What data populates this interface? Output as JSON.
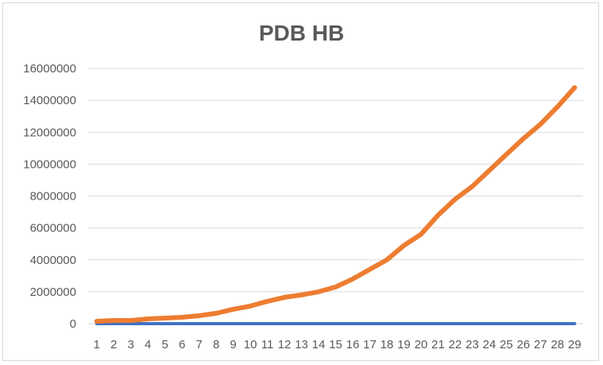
{
  "chart_data": {
    "type": "line",
    "title": "PDB HB",
    "xlabel": "",
    "ylabel": "",
    "categories": [
      "1",
      "2",
      "3",
      "4",
      "5",
      "6",
      "7",
      "8",
      "9",
      "10",
      "11",
      "12",
      "13",
      "14",
      "15",
      "16",
      "17",
      "18",
      "19",
      "20",
      "21",
      "22",
      "23",
      "24",
      "25",
      "26",
      "27",
      "28",
      "29"
    ],
    "y_ticks": [
      "0",
      "2000000",
      "4000000",
      "6000000",
      "8000000",
      "10000000",
      "12000000",
      "14000000",
      "16000000"
    ],
    "ylim": [
      0,
      16000000
    ],
    "grid": true,
    "legend": "none",
    "series": [
      {
        "color": "#4472c4",
        "values": [
          0,
          0,
          0,
          0,
          0,
          0,
          0,
          0,
          0,
          0,
          0,
          0,
          0,
          0,
          0,
          0,
          0,
          0,
          0,
          0,
          0,
          0,
          0,
          0,
          0,
          0,
          0,
          0,
          0
        ]
      },
      {
        "color": "#ed7d31",
        "values": [
          150000,
          200000,
          200000,
          300000,
          350000,
          400000,
          500000,
          650000,
          900000,
          1100000,
          1400000,
          1650000,
          1800000,
          2000000,
          2300000,
          2800000,
          3400000,
          4000000,
          4900000,
          5600000,
          6800000,
          7800000,
          8600000,
          9600000,
          10600000,
          11600000,
          12500000,
          13600000,
          14800000
        ]
      }
    ]
  }
}
